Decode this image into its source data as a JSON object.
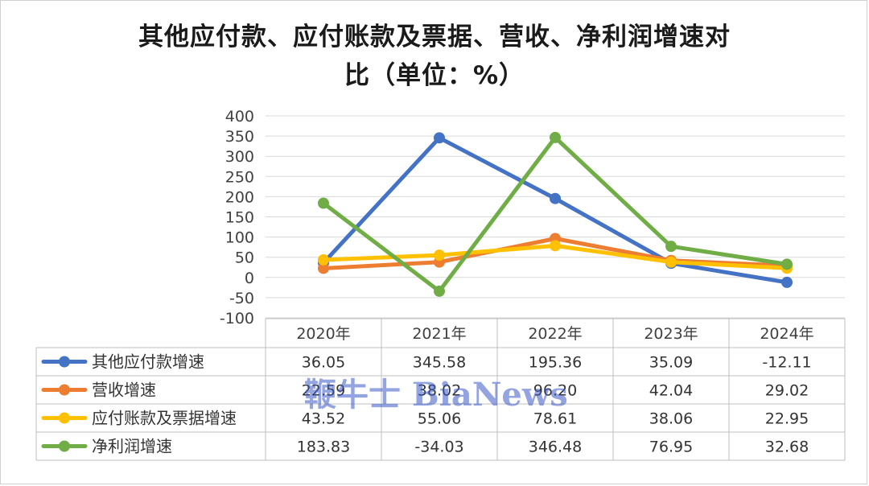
{
  "title_line1": "其他应付款、应付账款及票据、营收、净利润增速对",
  "title_line2": "比（单位：%）",
  "watermark": "鞭牛士 BiaNews",
  "chart_data": {
    "type": "line",
    "categories": [
      "2020年",
      "2021年",
      "2022年",
      "2023年",
      "2024年"
    ],
    "ylim": [
      -100,
      400
    ],
    "yticks": [
      -100,
      -50,
      0,
      50,
      100,
      150,
      200,
      250,
      300,
      350,
      400
    ],
    "grid": true,
    "legend": "data-table",
    "series": [
      {
        "name": "其他应付款增速",
        "color": "#4472C4",
        "values": [
          36.05,
          345.58,
          195.36,
          35.09,
          -12.11
        ]
      },
      {
        "name": "营收增速",
        "color": "#ED7D31",
        "values": [
          22.59,
          38.02,
          96.2,
          42.04,
          29.02
        ]
      },
      {
        "name": "应付账款及票据增速",
        "color": "#FFC000",
        "values": [
          43.52,
          55.06,
          78.61,
          38.06,
          22.95
        ]
      },
      {
        "name": "净利润增速",
        "color": "#70AD47",
        "values": [
          183.83,
          -34.03,
          346.48,
          76.95,
          32.68
        ]
      }
    ]
  }
}
